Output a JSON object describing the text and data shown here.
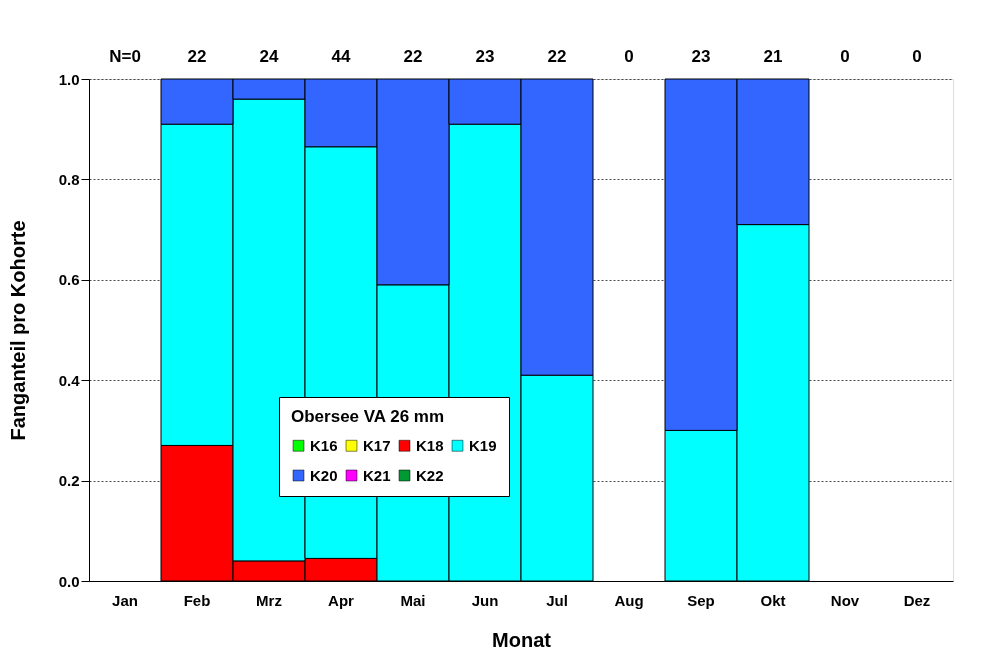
{
  "chart_data": {
    "type": "bar",
    "stacked": true,
    "xlabel": "Monat",
    "ylabel": "Fanganteil pro Kohorte",
    "legend_title": "Obersee VA  26 mm",
    "categories": [
      "Jan",
      "Feb",
      "Mrz",
      "Apr",
      "Mai",
      "Jun",
      "Jul",
      "Aug",
      "Sep",
      "Okt",
      "Nov",
      "Dez"
    ],
    "series": [
      {
        "name": "K16",
        "color": "#00ff00",
        "values": [
          null,
          null,
          null,
          null,
          null,
          null,
          null,
          null,
          null,
          null,
          null,
          null
        ]
      },
      {
        "name": "K17",
        "color": "#ffff00",
        "values": [
          null,
          null,
          null,
          null,
          null,
          null,
          null,
          null,
          null,
          null,
          null,
          null
        ]
      },
      {
        "name": "K18",
        "color": "#ff0000",
        "values": [
          null,
          0.27,
          0.04,
          0.045,
          null,
          null,
          null,
          null,
          null,
          null,
          null,
          null
        ]
      },
      {
        "name": "K19",
        "color": "#00ffff",
        "values": [
          null,
          0.64,
          0.92,
          0.82,
          0.59,
          0.91,
          0.41,
          null,
          0.3,
          0.71,
          null,
          null
        ]
      },
      {
        "name": "K20",
        "color": "#3366ff",
        "values": [
          null,
          0.09,
          0.04,
          0.135,
          0.41,
          0.09,
          0.59,
          null,
          0.7,
          0.29,
          null,
          null
        ]
      },
      {
        "name": "K21",
        "color": "#ff00ff",
        "values": [
          null,
          null,
          null,
          null,
          null,
          null,
          null,
          null,
          null,
          null,
          null,
          null
        ]
      },
      {
        "name": "K22",
        "color": "#009933",
        "values": [
          null,
          null,
          null,
          null,
          null,
          null,
          null,
          null,
          null,
          null,
          null,
          null
        ]
      }
    ],
    "ylim": [
      0,
      1
    ],
    "yticks": [
      {
        "value": 0,
        "label": "0.0"
      },
      {
        "value": 0.2,
        "label": "0.2"
      },
      {
        "value": 0.4,
        "label": "0.4"
      },
      {
        "value": 0.6,
        "label": "0.6"
      },
      {
        "value": 0.8,
        "label": "0.8"
      },
      {
        "value": 1,
        "label": "1.0"
      }
    ],
    "grid": "y",
    "legend": "bottom",
    "annotations": [
      "N=0",
      "22",
      "24",
      "44",
      "22",
      "23",
      "22",
      "0",
      "23",
      "21",
      "0",
      "0"
    ]
  }
}
